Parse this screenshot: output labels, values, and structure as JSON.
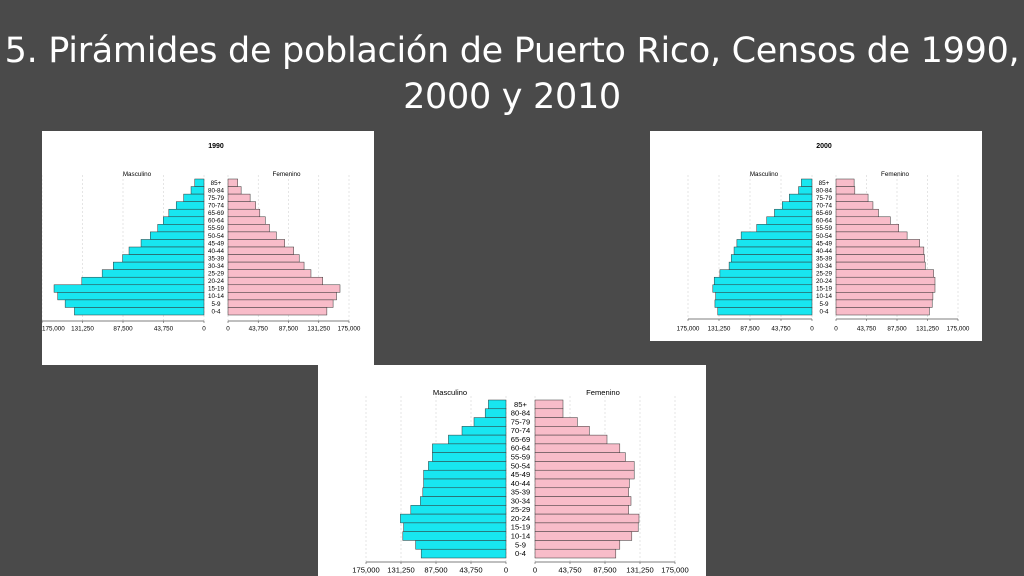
{
  "title": "5. Pirámides de población de Puerto Rico, Censos de 1990, 2000 y 2010",
  "colors": {
    "male": "#18e6f0",
    "female": "#f8bcc9",
    "slide_bg": "#4a4a4a"
  },
  "chart_data": [
    {
      "type": "bar",
      "title": "1990",
      "left_label": "Masculino",
      "right_label": "Femenino",
      "categories": [
        "85+",
        "80-84",
        "75-79",
        "70-74",
        "65-69",
        "60-64",
        "55-59",
        "50-54",
        "45-49",
        "40-44",
        "35-39",
        "30-34",
        "25-29",
        "20-24",
        "15-19",
        "10-14",
        "5-9",
        "0-4"
      ],
      "ticks": [
        "175,000",
        "131,250",
        "87,500",
        "43,750",
        "0"
      ],
      "series": [
        {
          "name": "Masculino",
          "values": [
            10000,
            14000,
            22000,
            30000,
            38000,
            44000,
            50000,
            58000,
            68000,
            81000,
            88000,
            98000,
            110000,
            132000,
            162000,
            158000,
            150000,
            140000
          ]
        },
        {
          "name": "Femenino",
          "values": [
            14000,
            19000,
            32000,
            40000,
            46000,
            54000,
            60000,
            70000,
            82000,
            95000,
            103000,
            110000,
            120000,
            137000,
            162000,
            157000,
            152000,
            143000
          ]
        }
      ],
      "xlim": [
        0,
        175000
      ]
    },
    {
      "type": "bar",
      "title": "2000",
      "left_label": "Masculino",
      "right_label": "Femenino",
      "categories": [
        "85+",
        "80-84",
        "75-79",
        "70-74",
        "65-69",
        "60-64",
        "55-59",
        "50-54",
        "45-49",
        "40-44",
        "35-39",
        "30-34",
        "25-29",
        "20-24",
        "15-19",
        "10-14",
        "5-9",
        "0-4"
      ],
      "ticks": [
        "175,000",
        "131,250",
        "87,500",
        "43,750",
        "0"
      ],
      "series": [
        {
          "name": "Masculino",
          "values": [
            15000,
            19000,
            32000,
            42000,
            53000,
            64000,
            78000,
            100000,
            106000,
            110000,
            114000,
            117000,
            130000,
            138000,
            140000,
            136000,
            137000,
            133000
          ]
        },
        {
          "name": "Femenino",
          "values": [
            26000,
            27000,
            46000,
            53000,
            61000,
            78000,
            90000,
            102000,
            120000,
            126000,
            127000,
            128000,
            140000,
            142000,
            142000,
            139000,
            138000,
            134000
          ]
        }
      ],
      "xlim": [
        0,
        175000
      ]
    },
    {
      "type": "bar",
      "title": "2010",
      "left_label": "Masculino",
      "right_label": "Femenino",
      "categories": [
        "85+",
        "80-84",
        "75-79",
        "70-74",
        "65-69",
        "60-64",
        "55-59",
        "50-54",
        "45-49",
        "40-44",
        "35-39",
        "30-34",
        "25-29",
        "20-24",
        "15-19",
        "10-14",
        "5-9",
        "0-4"
      ],
      "ticks": [
        "175,000",
        "131,250",
        "87,500",
        "43,750",
        "0"
      ],
      "series": [
        {
          "name": "Masculino",
          "values": [
            22000,
            26000,
            40000,
            55000,
            72000,
            92000,
            92000,
            97000,
            103000,
            103000,
            104000,
            107000,
            119000,
            132000,
            128000,
            129000,
            113000,
            106000
          ]
        },
        {
          "name": "Femenino",
          "values": [
            35000,
            35000,
            53000,
            68000,
            90000,
            106000,
            113000,
            124000,
            124000,
            118000,
            117000,
            120000,
            117000,
            130000,
            129000,
            121000,
            106000,
            101000
          ]
        }
      ],
      "xlim": [
        0,
        175000
      ]
    }
  ]
}
